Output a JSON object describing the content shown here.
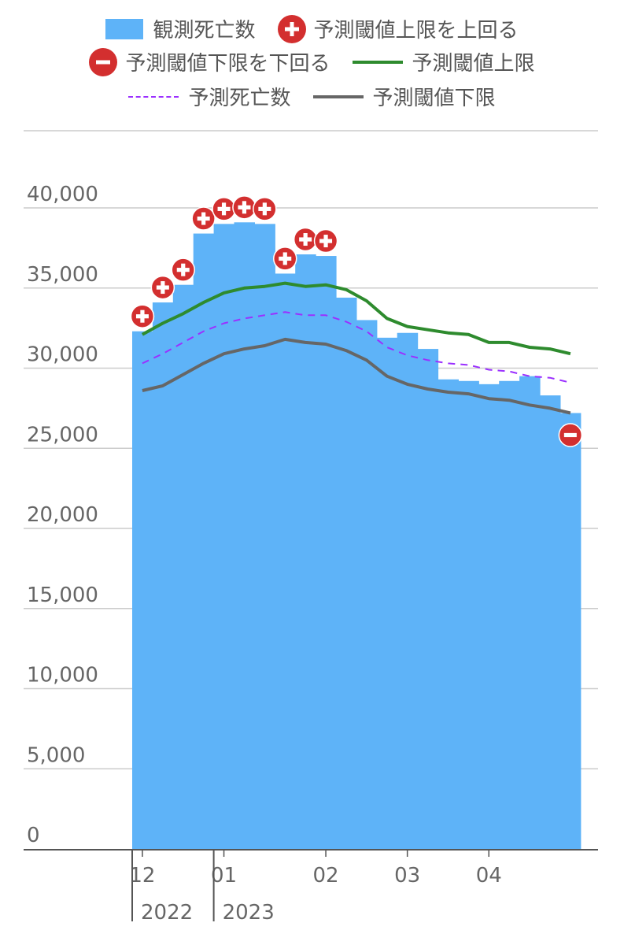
{
  "legend": {
    "observed": "観測死亡数",
    "above_upper": "予測閾値上限を上回る",
    "below_lower": "予測閾値下限を下回る",
    "upper": "予測閾値上限",
    "expected": "予測死亡数",
    "lower": "予測閾値下限"
  },
  "colors": {
    "bar": "#5eb3f8",
    "upper": "#2e8b2e",
    "expected": "#9b30ff",
    "lower": "#666666",
    "marker": "#d32f2f",
    "grid": "#cccccc",
    "axis": "#555555"
  },
  "chart_data": {
    "type": "bar",
    "ylim": [
      0,
      42000
    ],
    "y_ticks": [
      "0",
      "5,000",
      "10,000",
      "15,000",
      "20,000",
      "25,000",
      "30,000",
      "35,000",
      "40,000"
    ],
    "y_tick_values": [
      0,
      5000,
      10000,
      15000,
      20000,
      25000,
      30000,
      35000,
      40000
    ],
    "x_tick_labels": [
      {
        "label": "12",
        "week": 0.5
      },
      {
        "label": "01",
        "week": 4.5
      },
      {
        "label": "02",
        "week": 9.5
      },
      {
        "label": "03",
        "week": 13.5
      },
      {
        "label": "04",
        "week": 17.5
      }
    ],
    "year_labels": [
      {
        "label": "2022",
        "week": 0
      },
      {
        "label": "2023",
        "week": 4
      }
    ],
    "series": [
      {
        "name": "観測死亡数",
        "kind": "bar",
        "values": [
          32300,
          34100,
          35200,
          38400,
          39000,
          39100,
          39000,
          35900,
          37100,
          37000,
          34400,
          33000,
          31900,
          32200,
          31200,
          29300,
          29200,
          29000,
          29200,
          29500,
          28300,
          27200
        ]
      },
      {
        "name": "予測閾値上限",
        "kind": "line",
        "values": [
          32100,
          32800,
          33400,
          34100,
          34700,
          35000,
          35100,
          35300,
          35100,
          35200,
          34900,
          34200,
          33100,
          32600,
          32400,
          32200,
          32100,
          31600,
          31600,
          31300,
          31200,
          30900
        ]
      },
      {
        "name": "予測死亡数",
        "kind": "dashed-line",
        "values": [
          30300,
          30900,
          31600,
          32300,
          32800,
          33100,
          33300,
          33500,
          33300,
          33300,
          32900,
          32300,
          31300,
          30800,
          30500,
          30300,
          30200,
          29900,
          29800,
          29500,
          29400,
          29100
        ]
      },
      {
        "name": "予測閾値下限",
        "kind": "line",
        "values": [
          28600,
          28900,
          29600,
          30300,
          30900,
          31200,
          31400,
          31800,
          31600,
          31500,
          31100,
          30500,
          29500,
          29000,
          28700,
          28500,
          28400,
          28100,
          28000,
          27700,
          27500,
          27200
        ]
      }
    ],
    "above_upper_weeks": [
      0,
      1,
      2,
      3,
      4,
      5,
      6,
      7,
      8,
      9
    ],
    "below_lower_weeks": [
      21
    ]
  }
}
